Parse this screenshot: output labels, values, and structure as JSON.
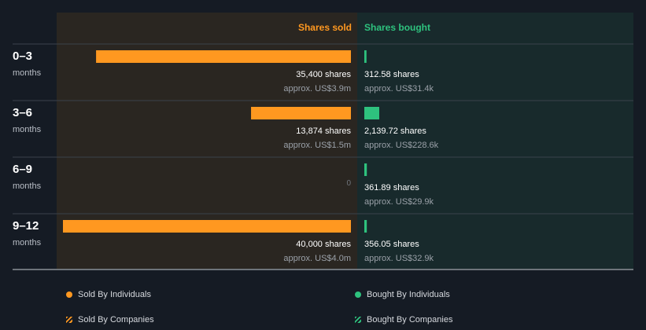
{
  "chart_data": {
    "type": "bar",
    "orientation": "horizontal",
    "column_headers": {
      "sold": "Shares sold",
      "bought": "Shares bought"
    },
    "categories": [
      {
        "range": "0–3",
        "unit": "months"
      },
      {
        "range": "3–6",
        "unit": "months"
      },
      {
        "range": "6–9",
        "unit": "months"
      },
      {
        "range": "9–12",
        "unit": "months"
      }
    ],
    "series": [
      {
        "name": "Shares sold",
        "values": [
          35400,
          13874,
          0,
          40000
        ],
        "labels": [
          "35,400 shares",
          "13,874 shares",
          "0",
          "40,000 shares"
        ],
        "approx": [
          "approx. US$3.9m",
          "approx. US$1.5m",
          "",
          "approx. US$4.0m"
        ]
      },
      {
        "name": "Shares bought",
        "values": [
          312.58,
          2139.72,
          361.89,
          356.05
        ],
        "labels": [
          "312.58 shares",
          "2,139.72 shares",
          "361.89 shares",
          "356.05 shares"
        ],
        "approx": [
          "approx. US$31.4k",
          "approx. US$228.6k",
          "approx. US$29.9k",
          "approx. US$32.9k"
        ]
      }
    ],
    "legend": [
      {
        "label": "Sold By Individuals",
        "style": "dot",
        "color": "#ff9820"
      },
      {
        "label": "Sold By Companies",
        "style": "hatch",
        "color": "#ff9820"
      },
      {
        "label": "Bought By Individuals",
        "style": "dot",
        "color": "#2ec27e"
      },
      {
        "label": "Bought By Companies",
        "style": "hatch",
        "color": "#2ec27e"
      }
    ],
    "colors": {
      "sold_bar": "#ff9820",
      "bought_bar": "#2ec27e",
      "sold_panel": "#2a2621",
      "bought_panel": "#182a2c",
      "background": "#151b24"
    }
  }
}
